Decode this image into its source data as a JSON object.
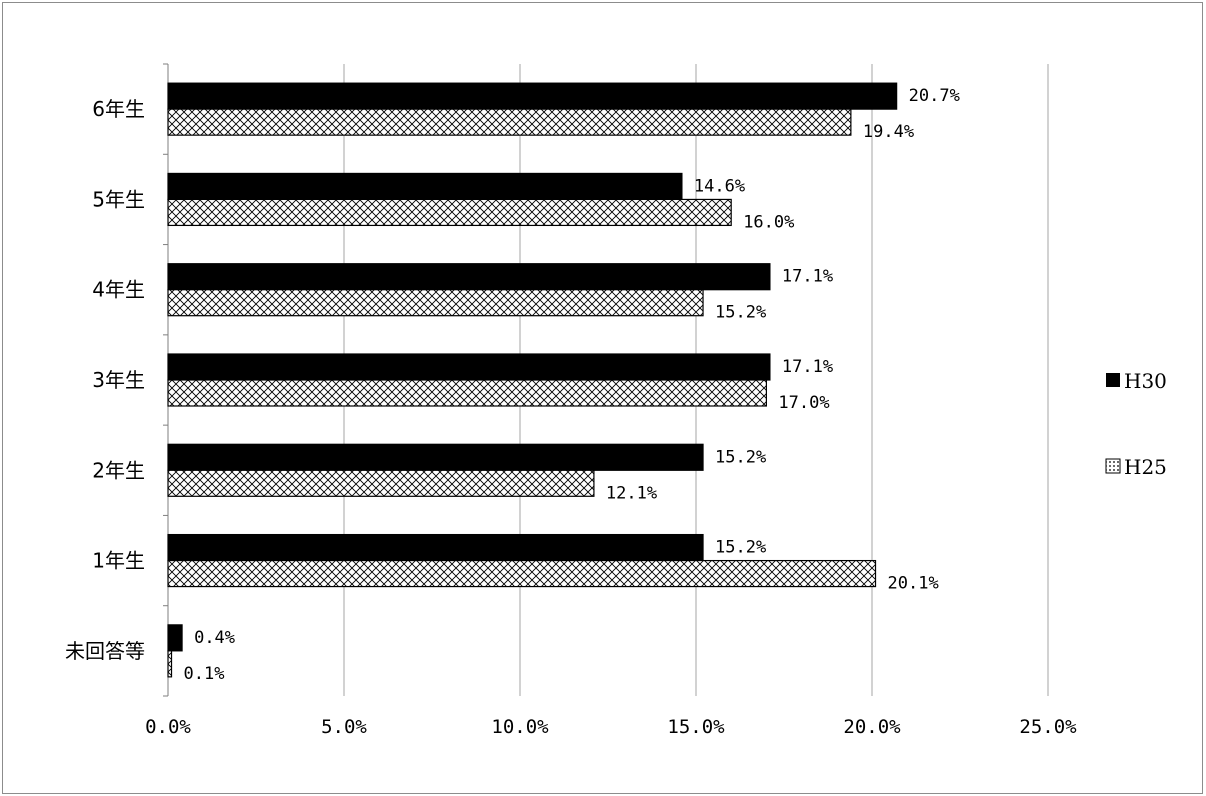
{
  "chart_data": {
    "type": "bar",
    "orientation": "horizontal",
    "categories": [
      "6年生",
      "5年生",
      "4年生",
      "3年生",
      "2年生",
      "1年生",
      "未回答等"
    ],
    "series": [
      {
        "name": "H30",
        "values": [
          20.7,
          14.6,
          17.1,
          17.1,
          15.2,
          15.2,
          0.4
        ],
        "labels": [
          "20.7%",
          "14.6%",
          "17.1%",
          "17.1%",
          "15.2%",
          "15.2%",
          "0.4%"
        ],
        "fill": "solid"
      },
      {
        "name": "H25",
        "values": [
          19.4,
          16.0,
          15.2,
          17.0,
          12.1,
          20.1,
          0.1
        ],
        "labels": [
          "19.4%",
          "16.0%",
          "15.2%",
          "17.0%",
          "12.1%",
          "20.1%",
          "0.1%"
        ],
        "fill": "crosshatch"
      }
    ],
    "x_ticks": [
      "0.0%",
      "5.0%",
      "10.0%",
      "15.0%",
      "20.0%",
      "25.0%"
    ],
    "xlim": [
      0,
      25
    ],
    "grid": "vertical",
    "legend": "right",
    "colors": {
      "solid": "#000000",
      "hatch_stroke": "#000000",
      "grid": "#a6a6a6",
      "frame": "#8c8c8c"
    }
  }
}
